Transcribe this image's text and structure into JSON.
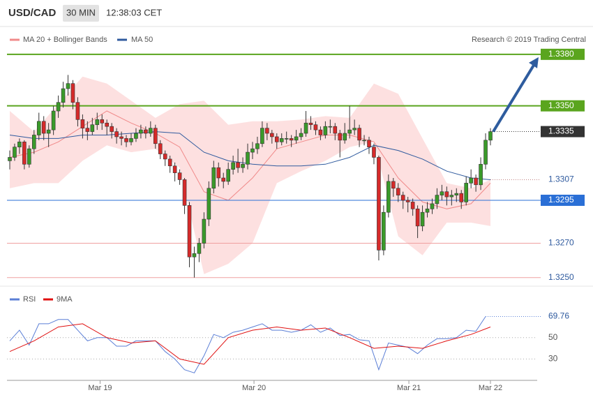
{
  "header": {
    "symbol": "USD/CAD",
    "interval": "30 MIN",
    "time": "12:38:03 CET"
  },
  "credit": "Research © 2019 Trading Central",
  "chart_data": {
    "type": "candlestick",
    "xlim": [
      0,
      99
    ],
    "ylim": [
      1.3245,
      1.3384
    ],
    "xticks": [
      {
        "value": 18.6,
        "label": "Mar 19"
      },
      {
        "value": 50.3,
        "label": "Mar 20"
      },
      {
        "value": 82.2,
        "label": "Mar 21"
      },
      {
        "value": 99,
        "label": "Mar 22"
      }
    ],
    "up_color": "#3a9a2a",
    "down_color": "#d62a2a",
    "candles": [
      [
        1.3318,
        1.3324,
        1.3313,
        1.332
      ],
      [
        1.332,
        1.3328,
        1.3318,
        1.3326
      ],
      [
        1.3326,
        1.3331,
        1.3322,
        1.3329
      ],
      [
        1.3329,
        1.333,
        1.3313,
        1.3316
      ],
      [
        1.3316,
        1.3327,
        1.3314,
        1.3325
      ],
      [
        1.3325,
        1.3336,
        1.3322,
        1.3333
      ],
      [
        1.3333,
        1.3346,
        1.333,
        1.3341
      ],
      [
        1.3341,
        1.3344,
        1.333,
        1.3334
      ],
      [
        1.3334,
        1.334,
        1.3326,
        1.3336
      ],
      [
        1.3336,
        1.335,
        1.3333,
        1.3347
      ],
      [
        1.3347,
        1.3356,
        1.3343,
        1.3352
      ],
      [
        1.3352,
        1.3364,
        1.3349,
        1.336
      ],
      [
        1.336,
        1.3368,
        1.3356,
        1.3363
      ],
      [
        1.3363,
        1.3365,
        1.3348,
        1.3352
      ],
      [
        1.3352,
        1.3355,
        1.3338,
        1.3342
      ],
      [
        1.3342,
        1.3345,
        1.3331,
        1.3337
      ],
      [
        1.3337,
        1.3341,
        1.333,
        1.3335
      ],
      [
        1.3335,
        1.3343,
        1.3333,
        1.3339
      ],
      [
        1.3339,
        1.3346,
        1.3336,
        1.3342
      ],
      [
        1.3342,
        1.3345,
        1.3336,
        1.334
      ],
      [
        1.334,
        1.3342,
        1.3333,
        1.3338
      ],
      [
        1.3338,
        1.334,
        1.3331,
        1.3335
      ],
      [
        1.3335,
        1.3337,
        1.3328,
        1.3332
      ],
      [
        1.3332,
        1.3335,
        1.3327,
        1.3331
      ],
      [
        1.3331,
        1.3333,
        1.3326,
        1.3329
      ],
      [
        1.3329,
        1.3334,
        1.3327,
        1.3331
      ],
      [
        1.3331,
        1.3337,
        1.3329,
        1.3334
      ],
      [
        1.3334,
        1.3339,
        1.3331,
        1.3336
      ],
      [
        1.3336,
        1.3338,
        1.3331,
        1.3334
      ],
      [
        1.3334,
        1.3341,
        1.3332,
        1.3337
      ],
      [
        1.3337,
        1.3339,
        1.3325,
        1.3328
      ],
      [
        1.3328,
        1.333,
        1.3319,
        1.3322
      ],
      [
        1.3322,
        1.3324,
        1.3315,
        1.3319
      ],
      [
        1.3319,
        1.3321,
        1.3311,
        1.3315
      ],
      [
        1.3315,
        1.3317,
        1.3306,
        1.3311
      ],
      [
        1.3311,
        1.3313,
        1.3304,
        1.3307
      ],
      [
        1.3307,
        1.3308,
        1.3287,
        1.3292
      ],
      [
        1.3292,
        1.3294,
        1.3256,
        1.3262
      ],
      [
        1.3262,
        1.3268,
        1.325,
        1.3264
      ],
      [
        1.3264,
        1.3273,
        1.3259,
        1.327
      ],
      [
        1.327,
        1.3288,
        1.3267,
        1.3284
      ],
      [
        1.3284,
        1.3306,
        1.328,
        1.3302
      ],
      [
        1.3302,
        1.3318,
        1.3299,
        1.3314
      ],
      [
        1.3314,
        1.3317,
        1.3303,
        1.3308
      ],
      [
        1.3308,
        1.3311,
        1.3302,
        1.3306
      ],
      [
        1.3306,
        1.3317,
        1.3304,
        1.3313
      ],
      [
        1.3313,
        1.3321,
        1.331,
        1.3317
      ],
      [
        1.3317,
        1.3325,
        1.3311,
        1.3314
      ],
      [
        1.3314,
        1.332,
        1.3311,
        1.3316
      ],
      [
        1.3316,
        1.3328,
        1.3313,
        1.3323
      ],
      [
        1.3323,
        1.3329,
        1.3319,
        1.3325
      ],
      [
        1.3325,
        1.3332,
        1.3322,
        1.3328
      ],
      [
        1.3328,
        1.3341,
        1.3326,
        1.3337
      ],
      [
        1.3337,
        1.334,
        1.333,
        1.3334
      ],
      [
        1.3334,
        1.3336,
        1.3328,
        1.3332
      ],
      [
        1.3332,
        1.3334,
        1.3325,
        1.3329
      ],
      [
        1.3329,
        1.3334,
        1.3327,
        1.3331
      ],
      [
        1.3331,
        1.3335,
        1.3328,
        1.3331
      ],
      [
        1.3331,
        1.3333,
        1.3326,
        1.333
      ],
      [
        1.333,
        1.3336,
        1.3328,
        1.3332
      ],
      [
        1.3332,
        1.3337,
        1.333,
        1.3334
      ],
      [
        1.3334,
        1.3347,
        1.3332,
        1.334
      ],
      [
        1.334,
        1.3344,
        1.3336,
        1.3339
      ],
      [
        1.3339,
        1.3341,
        1.3333,
        1.3336
      ],
      [
        1.3336,
        1.3338,
        1.333,
        1.3333
      ],
      [
        1.3333,
        1.3341,
        1.3331,
        1.3338
      ],
      [
        1.3338,
        1.3342,
        1.3334,
        1.3338
      ],
      [
        1.3338,
        1.334,
        1.333,
        1.3334
      ],
      [
        1.3334,
        1.3336,
        1.332,
        1.333
      ],
      [
        1.333,
        1.334,
        1.3328,
        1.3334
      ],
      [
        1.3334,
        1.335,
        1.3331,
        1.3336
      ],
      [
        1.3336,
        1.3342,
        1.3333,
        1.3337
      ],
      [
        1.3337,
        1.3339,
        1.3326,
        1.333
      ],
      [
        1.333,
        1.3333,
        1.3327,
        1.333
      ],
      [
        1.333,
        1.3332,
        1.3322,
        1.3326
      ],
      [
        1.3326,
        1.3328,
        1.3316,
        1.332
      ],
      [
        1.332,
        1.3321,
        1.326,
        1.3266
      ],
      [
        1.3266,
        1.3292,
        1.3263,
        1.3288
      ],
      [
        1.3288,
        1.331,
        1.3285,
        1.3306
      ],
      [
        1.3306,
        1.3308,
        1.3297,
        1.3302
      ],
      [
        1.3302,
        1.3305,
        1.3294,
        1.3298
      ],
      [
        1.3298,
        1.33,
        1.329,
        1.3295
      ],
      [
        1.3295,
        1.3297,
        1.3288,
        1.3294
      ],
      [
        1.3294,
        1.3296,
        1.3286,
        1.329
      ],
      [
        1.329,
        1.3292,
        1.3273,
        1.328
      ],
      [
        1.328,
        1.3292,
        1.3277,
        1.3288
      ],
      [
        1.3288,
        1.3294,
        1.3285,
        1.329
      ],
      [
        1.329,
        1.3296,
        1.3287,
        1.3293
      ],
      [
        1.3293,
        1.3302,
        1.329,
        1.3298
      ],
      [
        1.3298,
        1.3304,
        1.3295,
        1.33
      ],
      [
        1.33,
        1.3303,
        1.3292,
        1.3297
      ],
      [
        1.3297,
        1.3301,
        1.3292,
        1.3298
      ],
      [
        1.3298,
        1.3302,
        1.3294,
        1.3299
      ],
      [
        1.3299,
        1.3301,
        1.329,
        1.3294
      ],
      [
        1.3294,
        1.3309,
        1.3292,
        1.3305
      ],
      [
        1.3305,
        1.3313,
        1.3302,
        1.3308
      ],
      [
        1.3308,
        1.331,
        1.33,
        1.3304
      ],
      [
        1.3304,
        1.332,
        1.3301,
        1.3316
      ],
      [
        1.3316,
        1.3334,
        1.3313,
        1.333
      ],
      [
        1.333,
        1.3337,
        1.3327,
        1.3335
      ]
    ],
    "line_x": [
      0,
      5,
      10,
      15,
      20,
      25,
      30,
      35,
      40,
      45,
      50,
      55,
      60,
      65,
      70,
      75,
      80,
      85,
      90,
      95,
      99
    ],
    "series": [
      {
        "name": "MA 20 + Bollinger Bands",
        "color": "#f08a8a",
        "band_color": "#fde0e0",
        "values": [
          1.332,
          1.3323,
          1.3329,
          1.3338,
          1.3347,
          1.334,
          1.3334,
          1.3326,
          1.33,
          1.3295,
          1.3308,
          1.3325,
          1.3329,
          1.3333,
          1.3333,
          1.3329,
          1.3308,
          1.3294,
          1.329,
          1.3293,
          1.3305
        ],
        "upper": [
          1.3347,
          1.3335,
          1.3351,
          1.3367,
          1.3363,
          1.3353,
          1.3343,
          1.3351,
          1.3353,
          1.3339,
          1.3341,
          1.3341,
          1.3342,
          1.3344,
          1.3343,
          1.3363,
          1.3357,
          1.3331,
          1.3305,
          1.3302,
          1.3307
        ],
        "lower": [
          1.3302,
          1.3305,
          1.3305,
          1.3318,
          1.3327,
          1.3323,
          1.3325,
          1.3314,
          1.3252,
          1.3258,
          1.327,
          1.3305,
          1.3312,
          1.3318,
          1.3326,
          1.3329,
          1.3274,
          1.3263,
          1.3282,
          1.3282,
          1.328
        ]
      },
      {
        "name": "MA 50",
        "color": "#2f5a9e",
        "values": [
          1.3333,
          1.3331,
          1.3331,
          1.3333,
          1.3333,
          1.3334,
          1.3335,
          1.3334,
          1.3323,
          1.3318,
          1.3316,
          1.3315,
          1.3315,
          1.3316,
          1.332,
          1.3327,
          1.3324,
          1.3319,
          1.3312,
          1.3308,
          1.3307
        ]
      }
    ],
    "levels": [
      {
        "value": 1.338,
        "label": "1.3380",
        "color": "#5aa51e",
        "style": "solid",
        "box": true
      },
      {
        "value": 1.335,
        "label": "1.3350",
        "color": "#5aa51e",
        "style": "solid",
        "box": true
      },
      {
        "value": 1.3335,
        "label": "1.3335",
        "color": "#333333",
        "style": "dotted",
        "box": true
      },
      {
        "value": 1.3307,
        "label": "1.3307",
        "color": "#c08080",
        "style": "dotted",
        "box": false
      },
      {
        "value": 1.3295,
        "label": "1.3295",
        "color": "#2a6fd6",
        "style": "solid",
        "box": true
      },
      {
        "value": 1.327,
        "label": "1.3270",
        "color": "#f0a0a0",
        "style": "solid",
        "box": false
      },
      {
        "value": 1.325,
        "label": "1.3250",
        "color": "#f0a0a0",
        "style": "solid",
        "box": false
      }
    ],
    "target": 0,
    "rsi": {
      "ylim": [
        10,
        93
      ],
      "yticks": [
        30,
        50
      ],
      "series": [
        {
          "name": "RSI",
          "color": "#5b7fd6",
          "x": [
            0,
            2,
            4,
            6,
            8,
            10,
            12,
            14,
            16,
            18,
            20,
            22,
            24,
            26,
            28,
            30,
            32,
            34,
            36,
            38,
            40,
            42,
            44,
            46,
            48,
            50,
            52,
            54,
            56,
            58,
            60,
            62,
            64,
            66,
            68,
            70,
            72,
            74,
            76,
            78,
            80,
            82,
            84,
            86,
            88,
            90,
            92,
            94,
            96,
            98
          ],
          "values": [
            47,
            57,
            43,
            63,
            63,
            67,
            67,
            57,
            47,
            50,
            50,
            42,
            42,
            47,
            47,
            47,
            37,
            30,
            20,
            17,
            33,
            53,
            50,
            55,
            57,
            60,
            63,
            57,
            57,
            55,
            57,
            62,
            55,
            59,
            52,
            53,
            48,
            47,
            20,
            45,
            43,
            41,
            35,
            43,
            49,
            49,
            50,
            57,
            56,
            69.76
          ]
        },
        {
          "name": "9MA",
          "color": "#e01010",
          "x": [
            0,
            5,
            10,
            15,
            20,
            25,
            30,
            35,
            40,
            45,
            50,
            55,
            60,
            65,
            70,
            75,
            80,
            85,
            90,
            95,
            99
          ],
          "values": [
            37,
            47,
            60,
            63,
            50,
            45,
            47,
            30,
            25,
            50,
            57,
            60,
            57,
            59,
            50,
            40,
            42,
            40,
            47,
            53,
            60
          ]
        }
      ]
    }
  }
}
